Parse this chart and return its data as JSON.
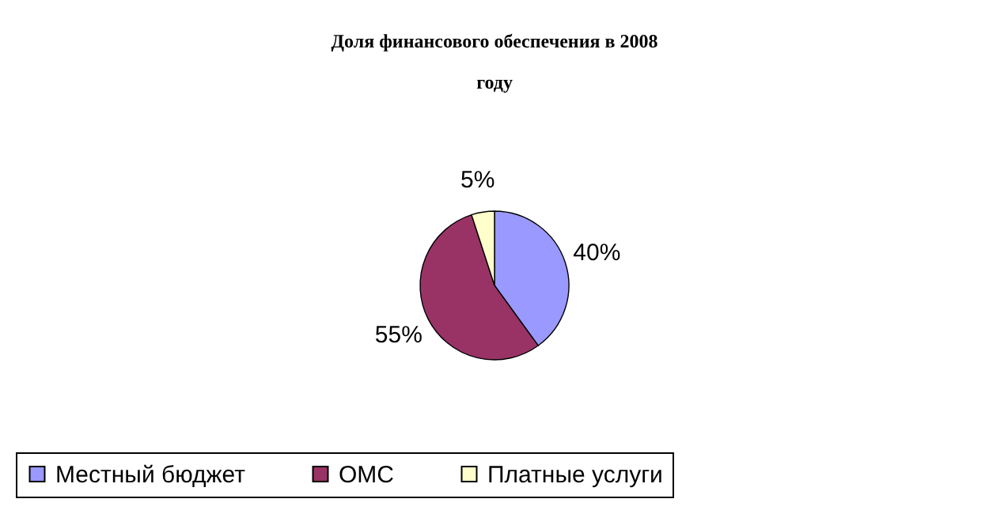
{
  "chart_data": {
    "type": "pie",
    "title": "Доля финансового обеспечения в 2008 году",
    "categories": [
      "Местный бюджет",
      "ОМС",
      "Платные услуги"
    ],
    "values": [
      40,
      55,
      5
    ],
    "colors": [
      "#9999ff",
      "#993366",
      "#ffffcc"
    ],
    "value_labels": [
      "40%",
      "55%",
      "5%"
    ],
    "legend": "bottom"
  }
}
